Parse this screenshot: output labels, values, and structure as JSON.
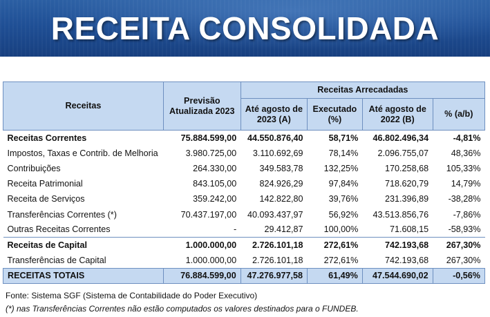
{
  "banner": {
    "title": "RECEITA CONSOLIDADA"
  },
  "table": {
    "headers": {
      "receitas": "Receitas",
      "previsao_l1": "Previsão",
      "previsao_l2": "Atualizada 2023",
      "arrecadadas": "Receitas Arrecadadas",
      "ate2023_l1": "Até agosto de",
      "ate2023_l2": "2023 (A)",
      "executado_l1": "Executado",
      "executado_l2": "(%)",
      "ate2022_l1": "Até agosto de",
      "ate2022_l2": "2022 (B)",
      "pct": "% (a/b)"
    },
    "rows": [
      {
        "label": "Receitas Correntes",
        "previsao": "75.884.599,00",
        "ate2023": "44.550.876,40",
        "executado": "58,71%",
        "ate2022": "46.802.496,34",
        "pct": "-4,81%"
      },
      {
        "label": "Impostos, Taxas e Contrib. de Melhoria",
        "previsao": "3.980.725,00",
        "ate2023": "3.110.692,69",
        "executado": "78,14%",
        "ate2022": "2.096.755,07",
        "pct": "48,36%"
      },
      {
        "label": "Contribuições",
        "previsao": "264.330,00",
        "ate2023": "349.583,78",
        "executado": "132,25%",
        "ate2022": "170.258,68",
        "pct": "105,33%"
      },
      {
        "label": "Receita Patrimonial",
        "previsao": "843.105,00",
        "ate2023": "824.926,29",
        "executado": "97,84%",
        "ate2022": "718.620,79",
        "pct": "14,79%"
      },
      {
        "label": "Receita de Serviços",
        "previsao": "359.242,00",
        "ate2023": "142.822,80",
        "executado": "39,76%",
        "ate2022": "231.396,89",
        "pct": "-38,28%"
      },
      {
        "label": "Transferências Correntes (*)",
        "previsao": "70.437.197,00",
        "ate2023": "40.093.437,97",
        "executado": "56,92%",
        "ate2022": "43.513.856,76",
        "pct": "-7,86%"
      },
      {
        "label": "Outras Receitas Correntes",
        "previsao": "-",
        "ate2023": "29.412,87",
        "executado": "100,00%",
        "ate2022": "71.608,15",
        "pct": "-58,93%"
      },
      {
        "label": "Receitas de Capital",
        "previsao": "1.000.000,00",
        "ate2023": "2.726.101,18",
        "executado": "272,61%",
        "ate2022": "742.193,68",
        "pct": "267,30%"
      },
      {
        "label": "Transferências de Capital",
        "previsao": "1.000.000,00",
        "ate2023": "2.726.101,18",
        "executado": "272,61%",
        "ate2022": "742.193,68",
        "pct": "267,30%"
      }
    ],
    "total": {
      "label": "RECEITAS TOTAIS",
      "previsao": "76.884.599,00",
      "ate2023": "47.276.977,58",
      "executado": "61,49%",
      "ate2022": "47.544.690,02",
      "pct": "-0,56%"
    }
  },
  "notes": {
    "fonte": "Fonte: Sistema SGF (Sistema de Contabilidade do Poder Executivo)",
    "nota": "(*) nas Transferências Correntes não estão computados os valores destinados para o FUNDEB."
  }
}
